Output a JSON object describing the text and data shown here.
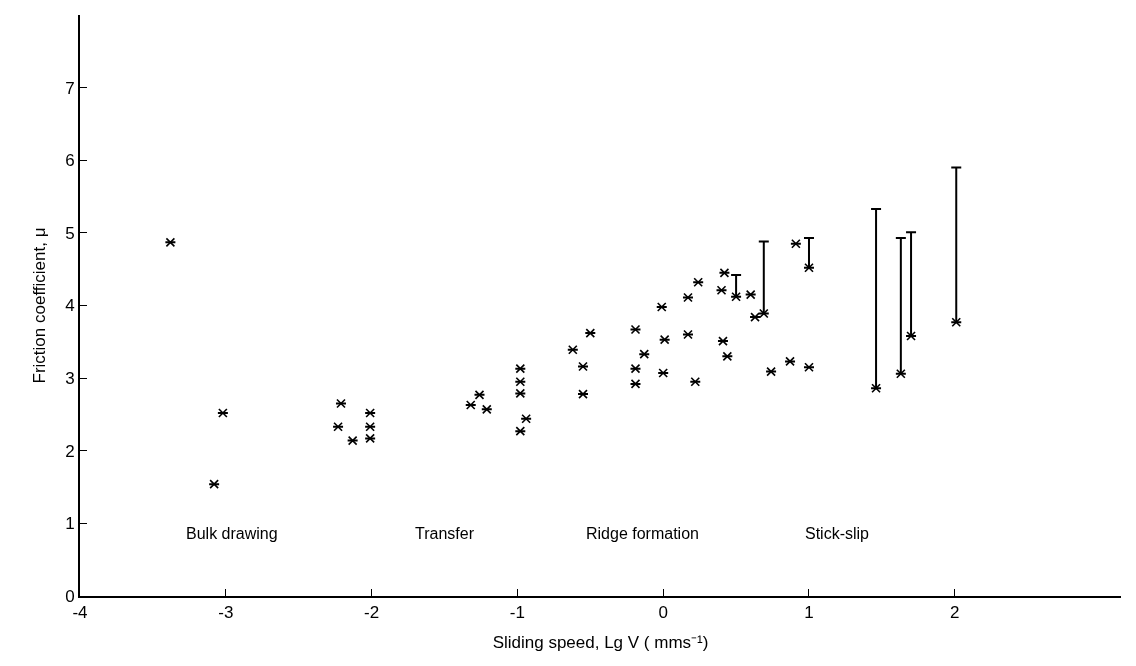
{
  "chart_data": {
    "type": "scatter",
    "xlabel": "Sliding speed, Lg V ( mms⁻¹)",
    "ylabel": "Friction coefficient, μ",
    "x": [
      -3.38,
      -3.08,
      -3.02,
      -2.21,
      -2.23,
      -2.13,
      -2.01,
      -2.01,
      -2.01,
      -1.32,
      -1.26,
      -1.21,
      -0.98,
      -0.98,
      -0.98,
      -0.94,
      -0.98,
      -0.62,
      -0.5,
      -0.55,
      -0.55,
      -0.19,
      -0.13,
      -0.19,
      -0.19,
      -0.01,
      0.01,
      0.0,
      0.17,
      0.17,
      0.24,
      0.22,
      0.42,
      0.4,
      0.41,
      0.44,
      0.5,
      0.6,
      0.63,
      0.69,
      0.74,
      0.87,
      0.91,
      1.0,
      1.0,
      1.46,
      1.63,
      1.7,
      2.01
    ],
    "values": [
      4.87,
      1.54,
      2.52,
      2.65,
      2.33,
      2.14,
      2.52,
      2.33,
      2.17,
      2.63,
      2.77,
      2.57,
      3.13,
      2.95,
      2.79,
      2.44,
      2.27,
      3.39,
      3.62,
      3.16,
      2.78,
      3.67,
      3.33,
      3.13,
      2.92,
      3.98,
      3.53,
      3.07,
      4.11,
      3.6,
      4.32,
      2.95,
      4.45,
      4.21,
      3.51,
      3.3,
      4.12,
      4.15,
      3.84,
      3.89,
      3.09,
      3.23,
      4.85,
      4.52,
      3.15,
      2.86,
      3.06,
      3.58,
      3.77
    ],
    "errors": [
      null,
      null,
      null,
      null,
      null,
      null,
      null,
      null,
      null,
      null,
      null,
      null,
      null,
      null,
      null,
      null,
      null,
      null,
      null,
      null,
      null,
      null,
      null,
      null,
      null,
      null,
      null,
      null,
      null,
      null,
      null,
      null,
      null,
      null,
      null,
      null,
      [
        4.12,
        4.42
      ],
      null,
      null,
      [
        3.89,
        4.88
      ],
      null,
      null,
      null,
      [
        4.52,
        4.93
      ],
      null,
      [
        2.86,
        5.33
      ],
      [
        3.06,
        4.93
      ],
      [
        3.58,
        5.01
      ],
      [
        3.77,
        5.9
      ]
    ],
    "color": "#000000",
    "marker": "cross",
    "xlim": [
      -4,
      3.14
    ],
    "ylim": [
      0,
      8.0
    ],
    "xticks": [
      -4,
      -3,
      -2,
      -1,
      0,
      1,
      2
    ],
    "yticks": [
      0,
      1,
      2,
      3,
      4,
      5,
      6,
      7
    ],
    "annotations": [
      "Bulk drawing",
      "Transfer",
      "Ridge formation",
      "Stick-slip"
    ]
  }
}
